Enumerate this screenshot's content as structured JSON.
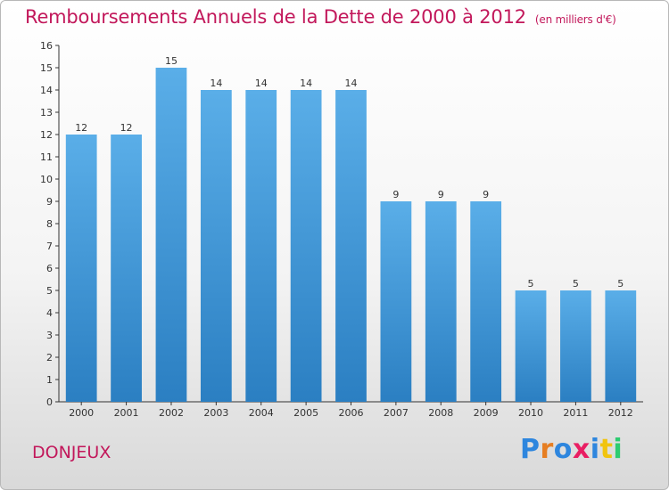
{
  "header": {
    "title": "Remboursements Annuels de la Dette de 2000 à 2012",
    "unit": "(en milliers d'€)"
  },
  "commune": "DONJEUX",
  "logo": {
    "letters": [
      "P",
      "r",
      "o",
      "x",
      "i",
      "t",
      "i"
    ],
    "colors": [
      "#2e86de",
      "#e67e22",
      "#2e86de",
      "#e91e63",
      "#2e86de",
      "#f1c40f",
      "#2ecc71"
    ]
  },
  "colors": {
    "accent": "#c2185b",
    "bar_top": "#5aaee8",
    "bar_bottom": "#2b7fc2"
  },
  "chart_data": {
    "type": "bar",
    "title": "Remboursements Annuels de la Dette de 2000 à 2012",
    "subtitle": "(en milliers d'€)",
    "categories": [
      "2000",
      "2001",
      "2002",
      "2003",
      "2004",
      "2005",
      "2006",
      "2007",
      "2008",
      "2009",
      "2010",
      "2011",
      "2012"
    ],
    "values": [
      12,
      12,
      15,
      14,
      14,
      14,
      14,
      9,
      9,
      9,
      5,
      5,
      5
    ],
    "y_ticks": [
      "0",
      "1",
      "2",
      "3",
      "4",
      "5",
      "6",
      "7",
      "8",
      "9",
      "10",
      "11",
      "12",
      "13",
      "14",
      "15",
      "16"
    ],
    "ylim": [
      0,
      16
    ],
    "grid": false,
    "data_labels": true
  }
}
